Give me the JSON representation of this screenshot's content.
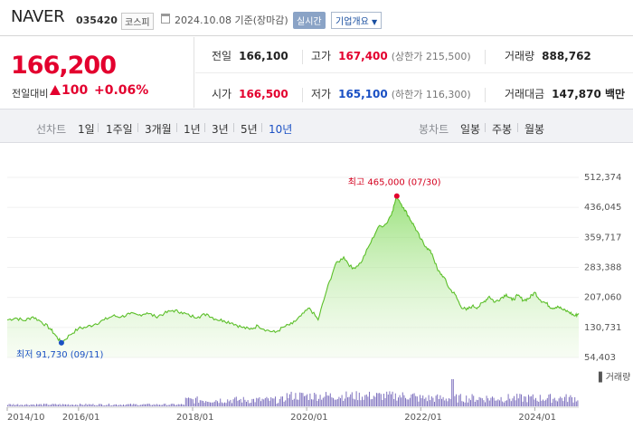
{
  "header": {
    "name": "NAVER",
    "code": "035420",
    "market": "코스피",
    "date": "2024.10.08 기준(장마감)",
    "realtime": "실시간",
    "company_info": "기업개요"
  },
  "price": {
    "current": "166,200",
    "prev_label": "전일대비",
    "change": "100",
    "change_pct": "+0.06%"
  },
  "stats": {
    "prev_close": {
      "label": "전일",
      "value": "166,100"
    },
    "high": {
      "label": "고가",
      "value": "167,400",
      "sub": "(상한가 215,500)"
    },
    "volume": {
      "label": "거래량",
      "value": "888,762"
    },
    "open": {
      "label": "시가",
      "value": "166,500"
    },
    "low": {
      "label": "저가",
      "value": "165,100",
      "sub": "(하한가 116,300)"
    },
    "turnover": {
      "label": "거래대금",
      "value": "147,870 백만"
    }
  },
  "tabs": {
    "line_group": "선차트",
    "line_items": [
      "1일",
      "1주일",
      "3개월",
      "1년",
      "3년",
      "5년",
      "10년"
    ],
    "selected": "10년",
    "candle_group": "봉차트",
    "candle_items": [
      "일봉",
      "주봉",
      "월봉"
    ]
  },
  "chart_data": {
    "type": "area",
    "ylim": [
      54403,
      512374
    ],
    "y_ticks": [
      "512,374",
      "436,045",
      "359,717",
      "283,388",
      "207,060",
      "130,731",
      "54,403"
    ],
    "x_ticks": [
      "2014/10",
      "2016/01",
      "2018/01",
      "2020/01",
      "2022/01",
      "2024/01"
    ],
    "x_tick_years": [
      2014.75,
      2016.0,
      2018.0,
      2020.0,
      2022.0,
      2024.0
    ],
    "x_range": [
      2014.75,
      2024.77
    ],
    "high_label": "최고 465,000 (07/30)",
    "high": {
      "t": 2021.58,
      "v": 465000
    },
    "low_label": "최저 91,730 (09/11)",
    "low": {
      "t": 2015.7,
      "v": 91730
    },
    "volume_label": "거래량",
    "series": [
      {
        "points": [
          [
            2014.75,
            150000
          ],
          [
            2014.9,
            155000
          ],
          [
            2015.05,
            148000
          ],
          [
            2015.2,
            158000
          ],
          [
            2015.35,
            145000
          ],
          [
            2015.5,
            128000
          ],
          [
            2015.6,
            110000
          ],
          [
            2015.7,
            91730
          ],
          [
            2015.85,
            112000
          ],
          [
            2016.0,
            128000
          ],
          [
            2016.15,
            132000
          ],
          [
            2016.3,
            140000
          ],
          [
            2016.45,
            150000
          ],
          [
            2016.6,
            160000
          ],
          [
            2016.75,
            158000
          ],
          [
            2016.9,
            165000
          ],
          [
            2017.05,
            162000
          ],
          [
            2017.2,
            168000
          ],
          [
            2017.35,
            158000
          ],
          [
            2017.5,
            166000
          ],
          [
            2017.65,
            174000
          ],
          [
            2017.8,
            170000
          ],
          [
            2017.95,
            160000
          ],
          [
            2018.1,
            158000
          ],
          [
            2018.25,
            165000
          ],
          [
            2018.4,
            152000
          ],
          [
            2018.55,
            148000
          ],
          [
            2018.7,
            142000
          ],
          [
            2018.85,
            132000
          ],
          [
            2019.0,
            126000
          ],
          [
            2019.15,
            135000
          ],
          [
            2019.3,
            124000
          ],
          [
            2019.45,
            118000
          ],
          [
            2019.6,
            132000
          ],
          [
            2019.75,
            140000
          ],
          [
            2019.9,
            160000
          ],
          [
            2020.05,
            180000
          ],
          [
            2020.2,
            150000
          ],
          [
            2020.35,
            225000
          ],
          [
            2020.5,
            290000
          ],
          [
            2020.65,
            310000
          ],
          [
            2020.8,
            280000
          ],
          [
            2020.95,
            295000
          ],
          [
            2021.1,
            340000
          ],
          [
            2021.25,
            385000
          ],
          [
            2021.4,
            395000
          ],
          [
            2021.5,
            425000
          ],
          [
            2021.58,
            465000
          ],
          [
            2021.7,
            435000
          ],
          [
            2021.8,
            410000
          ],
          [
            2021.9,
            385000
          ],
          [
            2022.0,
            355000
          ],
          [
            2022.1,
            335000
          ],
          [
            2022.2,
            318000
          ],
          [
            2022.3,
            275000
          ],
          [
            2022.4,
            260000
          ],
          [
            2022.5,
            230000
          ],
          [
            2022.6,
            215000
          ],
          [
            2022.7,
            185000
          ],
          [
            2022.8,
            175000
          ],
          [
            2022.9,
            185000
          ],
          [
            2023.0,
            182000
          ],
          [
            2023.1,
            195000
          ],
          [
            2023.2,
            210000
          ],
          [
            2023.3,
            195000
          ],
          [
            2023.4,
            205000
          ],
          [
            2023.5,
            215000
          ],
          [
            2023.6,
            200000
          ],
          [
            2023.7,
            212000
          ],
          [
            2023.8,
            200000
          ],
          [
            2023.9,
            205000
          ],
          [
            2024.0,
            220000
          ],
          [
            2024.1,
            200000
          ],
          [
            2024.2,
            192000
          ],
          [
            2024.3,
            180000
          ],
          [
            2024.4,
            185000
          ],
          [
            2024.5,
            175000
          ],
          [
            2024.6,
            170000
          ],
          [
            2024.7,
            160000
          ],
          [
            2024.77,
            166200
          ]
        ]
      }
    ]
  }
}
